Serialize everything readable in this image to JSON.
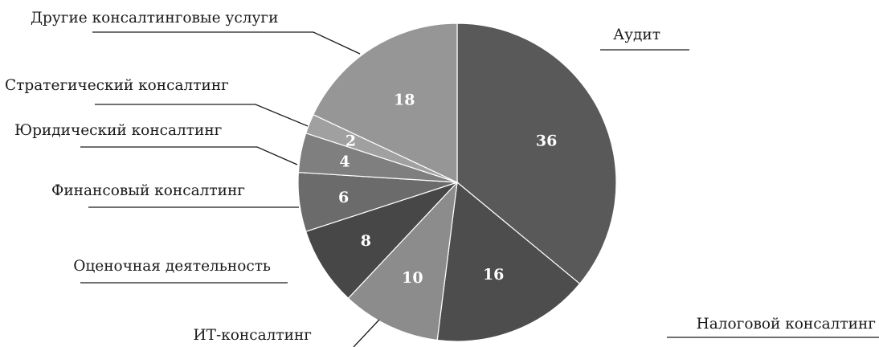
{
  "chart_data": {
    "type": "pie",
    "title": "",
    "categories": [
      "Аудит",
      "Налоговой консалтинг",
      "ИТ-консалтинг",
      "Оценочная деятельность",
      "Финансовый консалтинг",
      "Юридический консалтинг",
      "Стратегический консалтинг",
      "Другие консалтинговые услуги"
    ],
    "values": [
      36,
      16,
      10,
      8,
      6,
      4,
      2,
      18
    ],
    "data_labels": [
      "36",
      "16",
      "10",
      "8",
      "6",
      "4",
      "2",
      "18"
    ],
    "colors": [
      "#595959",
      "#4d4d4d",
      "#8c8c8c",
      "#474747",
      "#6b6b6b",
      "#7f7f7f",
      "#a0a0a0",
      "#969696"
    ],
    "start_angle_deg": 0,
    "direction": "clockwise",
    "legend": "none"
  }
}
